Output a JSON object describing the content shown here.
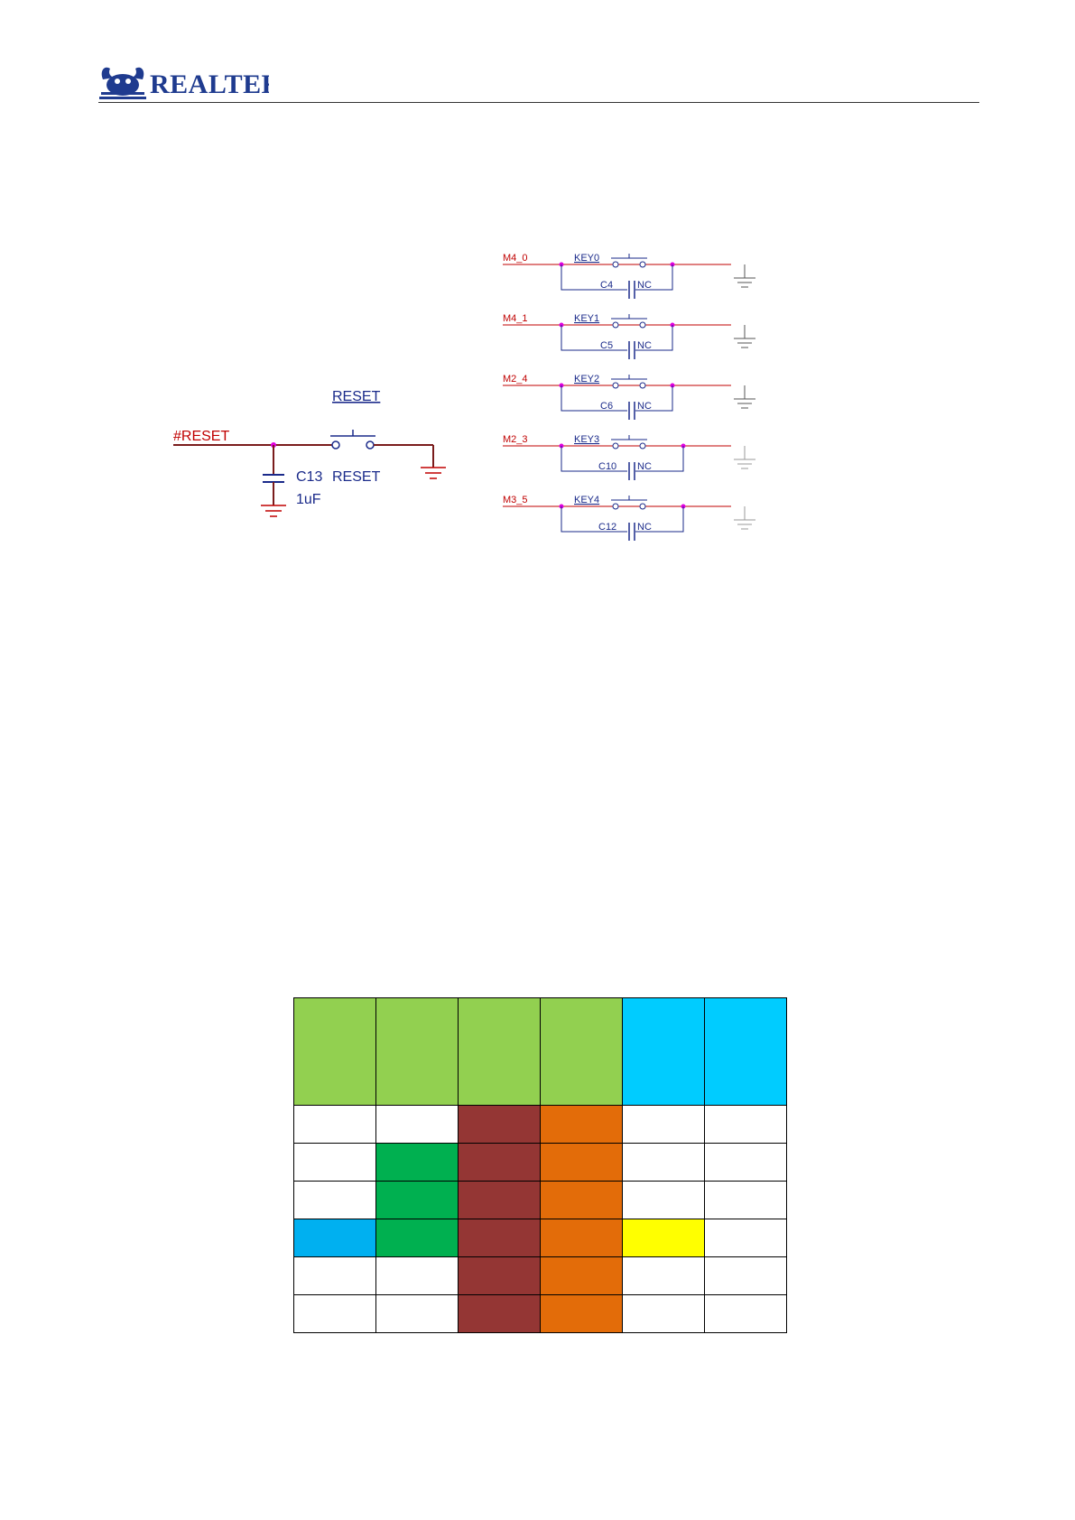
{
  "header": {
    "brand": "REALTEK"
  },
  "colors": {
    "net_red": "#c00000",
    "wire_dark": "#7a1c1c",
    "component_blue": "#1a2a8a",
    "junction_magenta": "#e000e0",
    "ground_gray": "#8c8c8c",
    "cell_green_light": "#92d050",
    "cell_cyan": "#00ccff",
    "cell_brown": "#943634",
    "cell_orange": "#e36c09",
    "cell_green": "#00b050",
    "cell_blue": "#00b0f0",
    "cell_yellow": "#ffff00",
    "cell_white": "#ffffff"
  },
  "reset_circuit": {
    "net_label": "#RESET",
    "switch_ref": "RESET",
    "switch_value": "RESET",
    "cap_ref": "C13",
    "cap_value": "1uF"
  },
  "key_circuits": [
    {
      "net": "M4_0",
      "key": "KEY0",
      "cap": "C4",
      "cap_value": "NC"
    },
    {
      "net": "M4_1",
      "key": "KEY1",
      "cap": "C5",
      "cap_value": "NC"
    },
    {
      "net": "M2_4",
      "key": "KEY2",
      "cap": "C6",
      "cap_value": "NC"
    },
    {
      "net": "M2_3",
      "key": "KEY3",
      "cap": "C10",
      "cap_value": "NC"
    },
    {
      "net": "M3_5",
      "key": "KEY4",
      "cap": "C12",
      "cap_value": "NC"
    }
  ],
  "color_table": {
    "header": [
      "light-green",
      "light-green",
      "light-green",
      "light-green",
      "cyan",
      "cyan"
    ],
    "rows": [
      [
        "white",
        "white",
        "brown",
        "orange",
        "white",
        "white"
      ],
      [
        "white",
        "green",
        "brown",
        "orange",
        "white",
        "white"
      ],
      [
        "white",
        "green",
        "brown",
        "orange",
        "white",
        "white"
      ],
      [
        "blue",
        "green",
        "brown",
        "orange",
        "yellow",
        "white"
      ],
      [
        "white",
        "white",
        "brown",
        "orange",
        "white",
        "white"
      ],
      [
        "white",
        "white",
        "brown",
        "orange",
        "white",
        "white"
      ]
    ]
  }
}
